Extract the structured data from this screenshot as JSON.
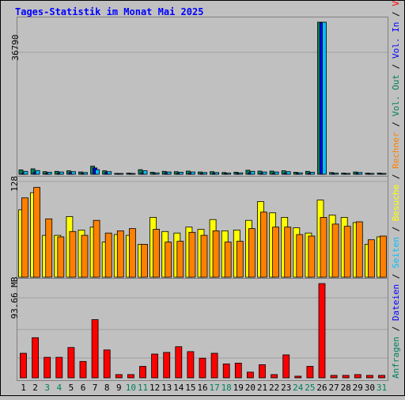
{
  "chart_data": {
    "type": "bar",
    "title": "Tages-Statistik im Monat Mai 2025",
    "categories": [
      "1",
      "2",
      "3",
      "4",
      "5",
      "6",
      "7",
      "8",
      "9",
      "10",
      "11",
      "12",
      "13",
      "14",
      "15",
      "16",
      "17",
      "18",
      "19",
      "20",
      "21",
      "22",
      "23",
      "24",
      "25",
      "26",
      "27",
      "28",
      "29",
      "30",
      "31"
    ],
    "weekend_days": [
      "3",
      "4",
      "10",
      "11",
      "17",
      "18",
      "24",
      "25",
      "31"
    ],
    "panels": {
      "top": {
        "scale_label": "36790",
        "ymax": 36790,
        "series": [
          {
            "name": "Anfragen",
            "color": "#00805c",
            "values": [
              1050,
              1320,
              630,
              700,
              840,
              560,
              1960,
              840,
              210,
              280,
              1120,
              490,
              700,
              630,
              770,
              560,
              630,
              420,
              490,
              980,
              770,
              770,
              840,
              490,
              700,
              36790,
              420,
              280,
              560,
              280,
              280
            ]
          },
          {
            "name": "Dateien",
            "color": "#0000ff",
            "values": [
              210,
              420,
              210,
              210,
              420,
              210,
              1540,
              420,
              70,
              70,
              280,
              140,
              280,
              140,
              210,
              140,
              140,
              70,
              140,
              280,
              210,
              210,
              280,
              140,
              210,
              36650,
              140,
              70,
              210,
              70,
              70
            ]
          },
          {
            "name": "Seiten",
            "color": "#00c0ff",
            "values": [
              700,
              910,
              490,
              560,
              630,
              420,
              1120,
              630,
              140,
              140,
              840,
              350,
              560,
              490,
              560,
              420,
              420,
              280,
              350,
              700,
              560,
              560,
              630,
              350,
              490,
              36790,
              280,
              210,
              420,
              210,
              210
            ]
          }
        ]
      },
      "middle": {
        "scale_label": "128",
        "ymax": 128,
        "series": [
          {
            "name": "Besuche",
            "color": "#ffff00",
            "values": [
              90,
              113,
              56,
              56,
              81,
              63,
              67,
              47,
              57,
              56,
              44,
              80,
              61,
              59,
              67,
              64,
              77,
              62,
              63,
              76,
              101,
              86,
              80,
              66,
              59,
              103,
              83,
              80,
              73,
              44,
              54
            ]
          },
          {
            "name": "Rechner",
            "color": "#ff8000",
            "values": [
              106,
              120,
              78,
              54,
              61,
              56,
              76,
              59,
              62,
              65,
              44,
              64,
              47,
              48,
              60,
              56,
              62,
              47,
              48,
              65,
              87,
              67,
              67,
              57,
              55,
              80,
              71,
              68,
              74,
              50,
              55
            ]
          }
        ]
      },
      "bottom": {
        "scale_label": "93.66 MB",
        "ymax": 115,
        "series": [
          {
            "name": "Volumen",
            "color": "#ff0000",
            "values": [
              30,
              49,
              25,
              25,
              37,
              20,
              71,
              34,
              4,
              4,
              14,
              29,
              31,
              38,
              32,
              24,
              30,
              17,
              18,
              7,
              16,
              4,
              28,
              2,
              14,
              115,
              3,
              3,
              4,
              3,
              3
            ]
          }
        ]
      }
    },
    "legend_right": [
      {
        "text": "Anfragen",
        "color": "#00805c"
      },
      {
        "text": "Dateien",
        "color": "#0000ff"
      },
      {
        "text": "Seiten",
        "color": "#00c0ff"
      },
      {
        "text": "Besuche",
        "color": "#ffff00"
      },
      {
        "text": "Rechner",
        "color": "#ff8000"
      },
      {
        "text": "Vol. Out",
        "color": "#00805c"
      },
      {
        "text": "Vol. In",
        "color": "#0000ff"
      },
      {
        "text": "Volumen",
        "color": "#ff0000"
      }
    ],
    "legend_separator": " / ",
    "colors": {
      "title": "#0000ff",
      "weekday_label": "#000000",
      "weekend_label": "#00805c",
      "background": "#c0c0c0"
    }
  }
}
